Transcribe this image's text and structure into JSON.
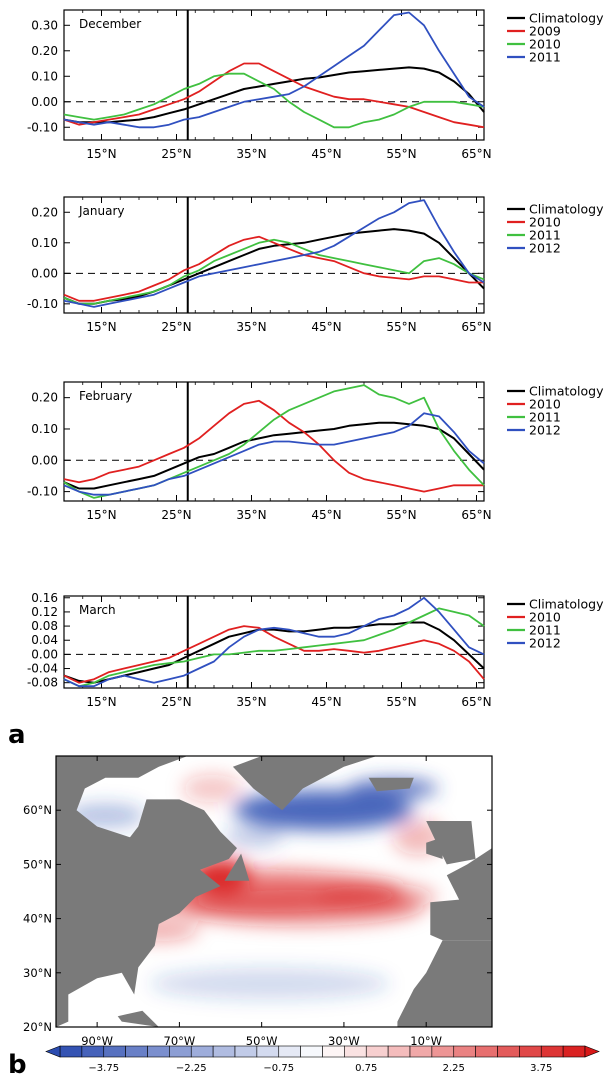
{
  "panel_labels": {
    "a": "a",
    "b": "b"
  },
  "chart_data": [
    {
      "type": "line",
      "title": "December",
      "x": [
        10,
        12,
        14,
        16,
        18,
        20,
        22,
        24,
        26,
        28,
        30,
        32,
        34,
        36,
        38,
        40,
        42,
        44,
        46,
        48,
        50,
        52,
        54,
        56,
        58,
        60,
        62,
        64,
        66
      ],
      "xticks": [
        "15°N",
        "25°N",
        "35°N",
        "45°N",
        "55°N",
        "65°N"
      ],
      "xtick_values": [
        15,
        25,
        35,
        45,
        55,
        65
      ],
      "xlim": [
        10,
        66
      ],
      "ylim": [
        -0.15,
        0.36
      ],
      "yticks": [
        "0.30",
        "0.20",
        "0.10",
        "0.00",
        "-0.10"
      ],
      "ytick_values": [
        0.3,
        0.2,
        0.1,
        0.0,
        -0.1
      ],
      "vline_x": 26.5,
      "legend_position": "right",
      "series": [
        {
          "name": "Climatology",
          "color": "#000000",
          "values": [
            -0.07,
            -0.08,
            -0.08,
            -0.08,
            -0.075,
            -0.07,
            -0.06,
            -0.045,
            -0.03,
            -0.01,
            0.01,
            0.03,
            0.05,
            0.06,
            0.07,
            0.08,
            0.09,
            0.095,
            0.105,
            0.115,
            0.12,
            0.125,
            0.13,
            0.135,
            0.13,
            0.115,
            0.08,
            0.03,
            -0.04
          ]
        },
        {
          "name": "2009",
          "color": "#e02020",
          "values": [
            -0.07,
            -0.09,
            -0.08,
            -0.07,
            -0.06,
            -0.05,
            -0.03,
            -0.01,
            0.01,
            0.04,
            0.08,
            0.12,
            0.15,
            0.15,
            0.12,
            0.09,
            0.06,
            0.04,
            0.02,
            0.01,
            0.01,
            0.0,
            -0.01,
            -0.02,
            -0.04,
            -0.06,
            -0.08,
            -0.09,
            -0.1
          ]
        },
        {
          "name": "2010",
          "color": "#40c040",
          "values": [
            -0.05,
            -0.06,
            -0.07,
            -0.06,
            -0.05,
            -0.03,
            -0.01,
            0.02,
            0.05,
            0.07,
            0.1,
            0.11,
            0.11,
            0.08,
            0.05,
            0.0,
            -0.04,
            -0.07,
            -0.1,
            -0.1,
            -0.08,
            -0.07,
            -0.05,
            -0.02,
            0.0,
            0.0,
            0.0,
            -0.01,
            -0.02
          ]
        },
        {
          "name": "2011",
          "color": "#3050c0",
          "values": [
            -0.07,
            -0.08,
            -0.09,
            -0.08,
            -0.09,
            -0.1,
            -0.1,
            -0.09,
            -0.07,
            -0.06,
            -0.04,
            -0.02,
            0.0,
            0.01,
            0.02,
            0.03,
            0.06,
            0.1,
            0.14,
            0.18,
            0.22,
            0.28,
            0.34,
            0.35,
            0.3,
            0.2,
            0.11,
            0.02,
            -0.02
          ]
        }
      ]
    },
    {
      "type": "line",
      "title": "January",
      "x": [
        10,
        12,
        14,
        16,
        18,
        20,
        22,
        24,
        26,
        28,
        30,
        32,
        34,
        36,
        38,
        40,
        42,
        44,
        46,
        48,
        50,
        52,
        54,
        56,
        58,
        60,
        62,
        64,
        66
      ],
      "xticks": [
        "15°N",
        "25°N",
        "35°N",
        "45°N",
        "55°N",
        "65°N"
      ],
      "xtick_values": [
        15,
        25,
        35,
        45,
        55,
        65
      ],
      "xlim": [
        10,
        66
      ],
      "ylim": [
        -0.13,
        0.25
      ],
      "yticks": [
        "0.20",
        "0.10",
        "0.00",
        "-0.10"
      ],
      "ytick_values": [
        0.2,
        0.1,
        0.0,
        -0.1
      ],
      "vline_x": 26.5,
      "legend_position": "right",
      "series": [
        {
          "name": "Climatology",
          "color": "#000000",
          "values": [
            -0.08,
            -0.1,
            -0.1,
            -0.09,
            -0.085,
            -0.075,
            -0.06,
            -0.04,
            -0.02,
            0.0,
            0.02,
            0.04,
            0.06,
            0.08,
            0.09,
            0.095,
            0.1,
            0.11,
            0.12,
            0.13,
            0.135,
            0.14,
            0.145,
            0.14,
            0.13,
            0.1,
            0.05,
            0.0,
            -0.05
          ]
        },
        {
          "name": "2010",
          "color": "#e02020",
          "values": [
            -0.07,
            -0.09,
            -0.09,
            -0.08,
            -0.07,
            -0.06,
            -0.04,
            -0.02,
            0.01,
            0.03,
            0.06,
            0.09,
            0.11,
            0.12,
            0.1,
            0.08,
            0.06,
            0.05,
            0.04,
            0.02,
            0.0,
            -0.01,
            -0.015,
            -0.02,
            -0.01,
            -0.01,
            -0.02,
            -0.03,
            -0.03
          ]
        },
        {
          "name": "2011",
          "color": "#40c040",
          "values": [
            -0.08,
            -0.1,
            -0.1,
            -0.09,
            -0.08,
            -0.07,
            -0.06,
            -0.04,
            -0.01,
            0.01,
            0.04,
            0.06,
            0.08,
            0.1,
            0.11,
            0.1,
            0.08,
            0.06,
            0.05,
            0.04,
            0.03,
            0.02,
            0.01,
            0.0,
            0.04,
            0.05,
            0.03,
            0.0,
            -0.02
          ]
        },
        {
          "name": "2012",
          "color": "#3050c0",
          "values": [
            -0.09,
            -0.1,
            -0.11,
            -0.1,
            -0.09,
            -0.08,
            -0.07,
            -0.05,
            -0.03,
            -0.01,
            0.0,
            0.01,
            0.02,
            0.03,
            0.04,
            0.05,
            0.06,
            0.07,
            0.09,
            0.12,
            0.15,
            0.18,
            0.2,
            0.23,
            0.24,
            0.15,
            0.07,
            0.0,
            -0.03
          ]
        }
      ]
    },
    {
      "type": "line",
      "title": "February",
      "x": [
        10,
        12,
        14,
        16,
        18,
        20,
        22,
        24,
        26,
        28,
        30,
        32,
        34,
        36,
        38,
        40,
        42,
        44,
        46,
        48,
        50,
        52,
        54,
        56,
        58,
        60,
        62,
        64,
        66
      ],
      "xticks": [
        "15°N",
        "25°N",
        "35°N",
        "45°N",
        "55°N",
        "65°N"
      ],
      "xtick_values": [
        15,
        25,
        35,
        45,
        55,
        65
      ],
      "xlim": [
        10,
        66
      ],
      "ylim": [
        -0.13,
        0.25
      ],
      "yticks": [
        "0.20",
        "0.10",
        "0.00",
        "-0.10"
      ],
      "ytick_values": [
        0.2,
        0.1,
        0.0,
        -0.1
      ],
      "vline_x": 26.5,
      "legend_position": "right",
      "series": [
        {
          "name": "Climatology",
          "color": "#000000",
          "values": [
            -0.07,
            -0.09,
            -0.09,
            -0.08,
            -0.07,
            -0.06,
            -0.05,
            -0.03,
            -0.01,
            0.01,
            0.02,
            0.04,
            0.06,
            0.07,
            0.08,
            0.085,
            0.09,
            0.095,
            0.1,
            0.11,
            0.115,
            0.12,
            0.12,
            0.115,
            0.11,
            0.1,
            0.07,
            0.02,
            -0.03
          ]
        },
        {
          "name": "2010",
          "color": "#e02020",
          "values": [
            -0.06,
            -0.07,
            -0.06,
            -0.04,
            -0.03,
            -0.02,
            0.0,
            0.02,
            0.04,
            0.07,
            0.11,
            0.15,
            0.18,
            0.19,
            0.16,
            0.12,
            0.09,
            0.05,
            0.0,
            -0.04,
            -0.06,
            -0.07,
            -0.08,
            -0.09,
            -0.1,
            -0.09,
            -0.08,
            -0.08,
            -0.08
          ]
        },
        {
          "name": "2011",
          "color": "#40c040",
          "values": [
            -0.07,
            -0.1,
            -0.12,
            -0.11,
            -0.1,
            -0.09,
            -0.08,
            -0.06,
            -0.04,
            -0.02,
            0.0,
            0.02,
            0.05,
            0.09,
            0.13,
            0.16,
            0.18,
            0.2,
            0.22,
            0.23,
            0.24,
            0.21,
            0.2,
            0.18,
            0.2,
            0.1,
            0.03,
            -0.03,
            -0.08
          ]
        },
        {
          "name": "2012",
          "color": "#3050c0",
          "values": [
            -0.08,
            -0.1,
            -0.11,
            -0.11,
            -0.1,
            -0.09,
            -0.08,
            -0.06,
            -0.05,
            -0.03,
            -0.01,
            0.01,
            0.03,
            0.05,
            0.06,
            0.06,
            0.055,
            0.05,
            0.05,
            0.06,
            0.07,
            0.08,
            0.09,
            0.11,
            0.15,
            0.14,
            0.09,
            0.03,
            -0.01
          ]
        }
      ]
    },
    {
      "type": "line",
      "title": "March",
      "x": [
        10,
        12,
        14,
        16,
        18,
        20,
        22,
        24,
        26,
        28,
        30,
        32,
        34,
        36,
        38,
        40,
        42,
        44,
        46,
        48,
        50,
        52,
        54,
        56,
        58,
        60,
        62,
        64,
        66
      ],
      "xticks": [
        "15°N",
        "25°N",
        "35°N",
        "45°N",
        "55°N",
        "65°N"
      ],
      "xtick_values": [
        15,
        25,
        35,
        45,
        55,
        65
      ],
      "xlim": [
        10,
        66
      ],
      "ylim": [
        -0.095,
        0.165
      ],
      "yticks": [
        "0.16",
        "0.12",
        "0.08",
        "0.04",
        "0.00",
        "-0.04",
        "-0.08"
      ],
      "ytick_values": [
        0.16,
        0.12,
        0.08,
        0.04,
        0.0,
        -0.04,
        -0.08
      ],
      "vline_x": 26.5,
      "legend_position": "right",
      "series": [
        {
          "name": "Climatology",
          "color": "#000000",
          "values": [
            -0.06,
            -0.075,
            -0.08,
            -0.07,
            -0.06,
            -0.05,
            -0.04,
            -0.03,
            -0.01,
            0.01,
            0.03,
            0.05,
            0.06,
            0.07,
            0.07,
            0.065,
            0.065,
            0.07,
            0.075,
            0.075,
            0.08,
            0.085,
            0.085,
            0.09,
            0.09,
            0.07,
            0.04,
            0.0,
            -0.04
          ]
        },
        {
          "name": "2010",
          "color": "#e02020",
          "values": [
            -0.06,
            -0.08,
            -0.07,
            -0.05,
            -0.04,
            -0.03,
            -0.02,
            -0.01,
            0.01,
            0.03,
            0.05,
            0.07,
            0.08,
            0.075,
            0.05,
            0.03,
            0.01,
            0.01,
            0.015,
            0.01,
            0.005,
            0.01,
            0.02,
            0.03,
            0.04,
            0.03,
            0.01,
            -0.02,
            -0.07
          ]
        },
        {
          "name": "2011",
          "color": "#40c040",
          "values": [
            -0.07,
            -0.09,
            -0.08,
            -0.06,
            -0.05,
            -0.04,
            -0.03,
            -0.025,
            -0.02,
            -0.01,
            0.0,
            0.0,
            0.005,
            0.01,
            0.01,
            0.015,
            0.02,
            0.025,
            0.03,
            0.035,
            0.04,
            0.055,
            0.07,
            0.09,
            0.11,
            0.13,
            0.12,
            0.11,
            0.08
          ]
        },
        {
          "name": "2012",
          "color": "#3050c0",
          "values": [
            -0.07,
            -0.09,
            -0.09,
            -0.07,
            -0.06,
            -0.07,
            -0.08,
            -0.07,
            -0.06,
            -0.04,
            -0.02,
            0.02,
            0.05,
            0.07,
            0.075,
            0.07,
            0.06,
            0.05,
            0.05,
            0.06,
            0.08,
            0.1,
            0.11,
            0.13,
            0.16,
            0.12,
            0.07,
            0.02,
            0.0
          ]
        }
      ]
    },
    {
      "type": "heatmap",
      "xticks": [
        "90°W",
        "70°W",
        "50°W",
        "30°W",
        "10°W"
      ],
      "xtick_values": [
        -90,
        -70,
        -50,
        -30,
        -10
      ],
      "yticks": [
        "60°N",
        "50°N",
        "40°N",
        "30°N",
        "20°N"
      ],
      "ytick_values": [
        60,
        50,
        40,
        30,
        20
      ],
      "xlim": [
        -100,
        6
      ],
      "ylim": [
        20,
        70
      ],
      "colorbar_ticks": [
        "−3.75",
        "−2.25",
        "−0.75",
        "0.75",
        "2.25",
        "3.75"
      ],
      "colorbar_range": [
        -4.5,
        4.5
      ],
      "colorbar_bins": 24,
      "colors": {
        "negative": "#2b4cb0",
        "positive": "#d81818",
        "land": "#7a7a7a",
        "neutral": "#ffffff"
      }
    }
  ]
}
